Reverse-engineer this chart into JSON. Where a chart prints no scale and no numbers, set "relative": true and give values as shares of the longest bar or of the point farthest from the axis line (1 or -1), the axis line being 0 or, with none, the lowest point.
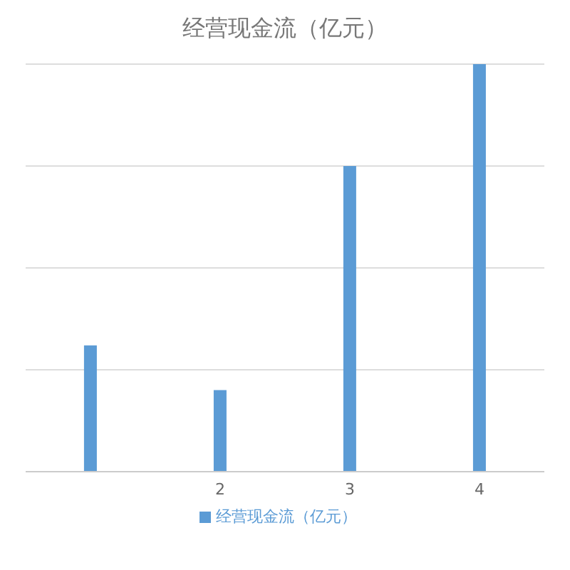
{
  "chart_data": {
    "type": "bar",
    "title": "经营现金流（亿元）",
    "relative": true,
    "categories": [
      null,
      "2",
      "3",
      "4"
    ],
    "series": [
      {
        "name": "经营现金流（亿元）",
        "color": "#5b9bd5",
        "values": [
          0.31,
          0.2,
          0.75,
          1
        ]
      }
    ],
    "grid": "y",
    "legend": "bottom"
  }
}
